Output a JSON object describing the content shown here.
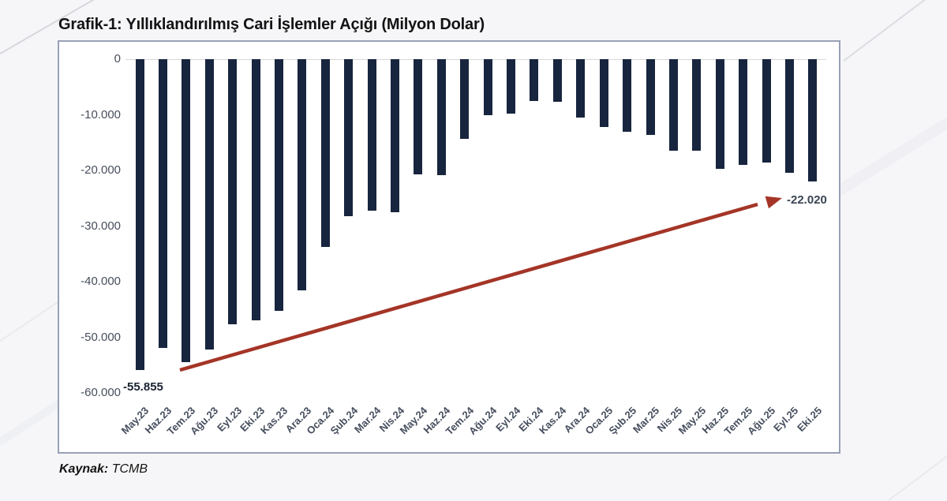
{
  "page": {
    "title": "Grafik-1: Yıllıklandırılmış Cari İşlemler Açığı (Milyon Dolar)",
    "source_label": "Kaynak:",
    "source_value": "TCMB"
  },
  "colors": {
    "bar": "#17253e",
    "arrow": "#a43527",
    "card_border": "#97a1b6",
    "axis_line": "#d8d8d8",
    "tick_text": "#474e5d",
    "background": "#f6f6f8"
  },
  "chart_data": {
    "type": "bar",
    "title": "Grafik-1: Yıllıklandırılmış Cari İşlemler Açığı (Milyon Dolar)",
    "unit": "Milyon Dolar",
    "source": "TCMB",
    "categories": [
      "May.23",
      "Haz.23",
      "Tem.23",
      "Ağu.23",
      "Eyl.23",
      "Eki.23",
      "Kas.23",
      "Ara.23",
      "Oca.24",
      "Şub.24",
      "Mar.24",
      "Nis.24",
      "May.24",
      "Haz.24",
      "Tem.24",
      "Ağu.24",
      "Eyl.24",
      "Eki.24",
      "Kas.24",
      "Ara.24",
      "Oca.25",
      "Şub.25",
      "Mar.25",
      "Nis.25",
      "May.25",
      "Haz.25",
      "Tem.25",
      "Ağu.25",
      "Eyl.25",
      "Eki.25"
    ],
    "values": [
      -55855,
      -51900,
      -54500,
      -52200,
      -47700,
      -46900,
      -45300,
      -41500,
      -33700,
      -28200,
      -27300,
      -27500,
      -20700,
      -20900,
      -14300,
      -10100,
      -9800,
      -7500,
      -7700,
      -10500,
      -12200,
      -13100,
      -13600,
      -16400,
      -16400,
      -19700,
      -19000,
      -18600,
      -20400,
      -22020
    ],
    "y_ticks": [
      "0",
      "-10.000",
      "-20.000",
      "-30.000",
      "-40.000",
      "-50.000",
      "-60.000"
    ],
    "ylim": [
      -60000,
      0
    ],
    "grid": "zero-line-only",
    "legend": "none",
    "annotations": [
      {
        "text": "-55.855",
        "target": "May.23",
        "value": -55855
      },
      {
        "text": "-22.020",
        "target": "Eki.25",
        "value": -22020
      }
    ],
    "trend_arrow": {
      "from": "May.23",
      "to": "Eki.25",
      "direction": "up-right"
    }
  }
}
